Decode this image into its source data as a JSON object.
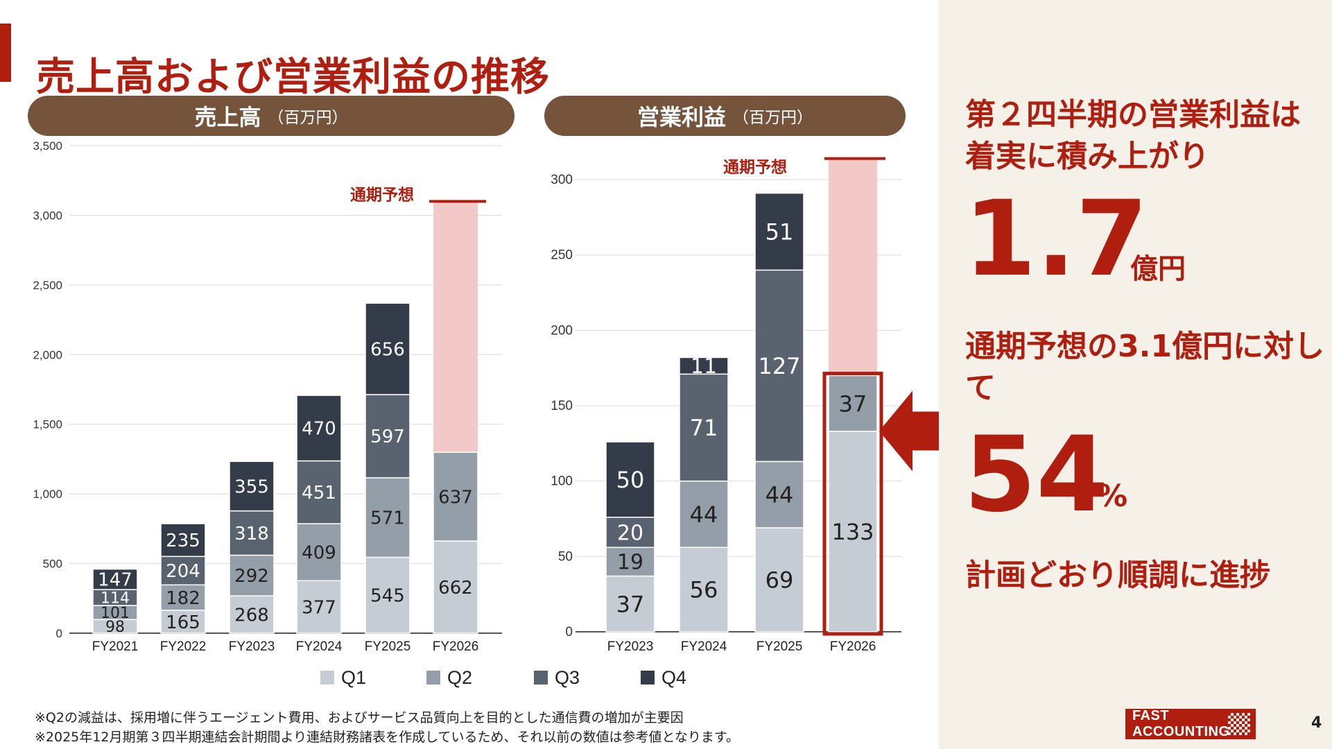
{
  "title": "売上高および営業利益の推移",
  "sales_header": {
    "label": "売上高",
    "unit": "（百万円）"
  },
  "op_header": {
    "label": "営業利益",
    "unit": "（百万円）"
  },
  "forecast_label": "通期予想",
  "legend": [
    "Q1",
    "Q2",
    "Q3",
    "Q4"
  ],
  "colors": {
    "q1": "#c5ccd3",
    "q2": "#939ea9",
    "q3": "#58636f",
    "q4": "#333c48",
    "forecast": "#f3c8c8",
    "accent": "#b01e0f",
    "header": "#76533b",
    "panel": "#f5f0e8"
  },
  "right_panel": {
    "headline1": "第２四半期の営業利益は着実に積み上がり",
    "big1": "1.7",
    "unit1": "億円",
    "headline2": "通期予想の3.1億円に対して",
    "big2": "54",
    "unit2": "%",
    "headline3": "計画どおり順調に進捗"
  },
  "footnotes": [
    "※Q2の減益は、採用増に伴うエージェント費用、およびサービス品質向上を目的とした通信費の増加が主要因",
    "※2025年12月期第３四半期連結会計期間より連結財務諸表を作成しているため、それ以前の数値は参考値となります。"
  ],
  "logo_text": "FAST ACCOUNTING",
  "page_number": "4",
  "chart_data": [
    {
      "type": "bar",
      "stacked": true,
      "categories": [
        "FY2021",
        "FY2022",
        "FY2023",
        "FY2024",
        "FY2025",
        "FY2026"
      ],
      "series": [
        {
          "name": "Q1",
          "values": [
            98,
            165,
            268,
            377,
            545,
            662
          ]
        },
        {
          "name": "Q2",
          "values": [
            101,
            182,
            292,
            409,
            571,
            637
          ]
        },
        {
          "name": "Q3",
          "values": [
            114,
            204,
            318,
            451,
            597,
            null
          ]
        },
        {
          "name": "Q4",
          "values": [
            147,
            235,
            355,
            470,
            656,
            null
          ]
        }
      ],
      "forecast": {
        "category": "FY2026",
        "value": 3100,
        "label": "通期予想"
      },
      "yticks": [
        "0",
        "500",
        "1,000",
        "1,500",
        "2,000",
        "2,500",
        "3,000",
        "3,500"
      ],
      "ylim": [
        0,
        3500
      ],
      "grid": true
    },
    {
      "type": "bar",
      "stacked": true,
      "categories": [
        "FY2023",
        "FY2024",
        "FY2025",
        "FY2026"
      ],
      "series": [
        {
          "name": "Q1",
          "values": [
            37,
            56,
            69,
            133
          ]
        },
        {
          "name": "Q2",
          "values": [
            19,
            44,
            44,
            37
          ]
        },
        {
          "name": "Q3",
          "values": [
            20,
            71,
            127,
            null
          ]
        },
        {
          "name": "Q4",
          "values": [
            50,
            11,
            51,
            null
          ]
        }
      ],
      "forecast": {
        "category": "FY2026",
        "value": 314,
        "label": "通期予想"
      },
      "yticks": [
        "0",
        "50",
        "100",
        "150",
        "200",
        "250",
        "300"
      ],
      "ylim": [
        0,
        300
      ],
      "grid": true,
      "highlight": "FY2026"
    }
  ]
}
